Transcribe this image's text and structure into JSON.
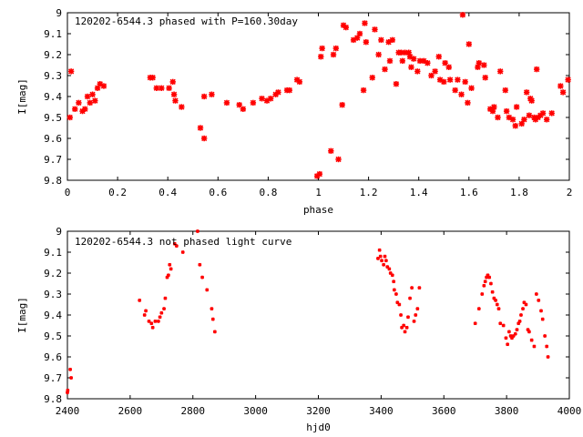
{
  "chart_data": [
    {
      "type": "scatter",
      "title": "120202-6544.3 phased with P=160.30day",
      "xlabel": "phase",
      "ylabel": "I[mag]",
      "xlim": [
        0,
        2
      ],
      "ylim": [
        9.8,
        9.0
      ],
      "y_inverted": true,
      "xticks": [
        0,
        0.2,
        0.4,
        0.6,
        0.8,
        1,
        1.2,
        1.4,
        1.6,
        1.8,
        2
      ],
      "xtick_labels": [
        "0",
        "0.2",
        "0.4",
        "0.6",
        "0.8",
        "1",
        "1.2",
        "1.4",
        "1.6",
        "1.8",
        "2"
      ],
      "yticks": [
        9.0,
        9.1,
        9.2,
        9.3,
        9.4,
        9.5,
        9.6,
        9.7,
        9.8
      ],
      "ytick_labels": [
        "9",
        "9.1",
        "9.2",
        "9.3",
        "9.4",
        "9.5",
        "9.6",
        "9.7",
        "9.8"
      ],
      "marker_color": "#ff0000",
      "marker": "cross-large",
      "series": [
        {
          "points": [
            [
              0.01,
              9.5
            ],
            [
              0.015,
              9.28
            ],
            [
              0.03,
              9.46
            ],
            [
              0.045,
              9.43
            ],
            [
              0.06,
              9.47
            ],
            [
              0.07,
              9.46
            ],
            [
              0.08,
              9.4
            ],
            [
              0.09,
              9.43
            ],
            [
              0.1,
              9.39
            ],
            [
              0.11,
              9.42
            ],
            [
              0.12,
              9.36
            ],
            [
              0.13,
              9.34
            ],
            [
              0.145,
              9.35
            ],
            [
              0.33,
              9.31
            ],
            [
              0.34,
              9.31
            ],
            [
              0.355,
              9.36
            ],
            [
              0.375,
              9.36
            ],
            [
              0.405,
              9.36
            ],
            [
              0.42,
              9.33
            ],
            [
              0.425,
              9.39
            ],
            [
              0.43,
              9.42
            ],
            [
              0.455,
              9.45
            ],
            [
              0.53,
              9.55
            ],
            [
              0.545,
              9.6
            ],
            [
              0.545,
              9.4
            ],
            [
              0.575,
              9.39
            ],
            [
              0.635,
              9.43
            ],
            [
              0.685,
              9.44
            ],
            [
              0.7,
              9.46
            ],
            [
              0.74,
              9.43
            ],
            [
              0.775,
              9.41
            ],
            [
              0.795,
              9.42
            ],
            [
              0.81,
              9.41
            ],
            [
              0.83,
              9.39
            ],
            [
              0.84,
              9.38
            ],
            [
              0.875,
              9.37
            ],
            [
              0.885,
              9.37
            ],
            [
              0.915,
              9.32
            ],
            [
              0.925,
              9.33
            ],
            [
              0.995,
              9.78
            ],
            [
              1.005,
              9.77
            ],
            [
              1.01,
              9.21
            ],
            [
              1.015,
              9.17
            ],
            [
              1.05,
              9.66
            ],
            [
              1.06,
              9.2
            ],
            [
              1.07,
              9.17
            ],
            [
              1.08,
              9.7
            ],
            [
              1.095,
              9.44
            ],
            [
              1.1,
              9.06
            ],
            [
              1.11,
              9.07
            ],
            [
              1.14,
              9.13
            ],
            [
              1.155,
              9.12
            ],
            [
              1.165,
              9.1
            ],
            [
              1.18,
              9.37
            ],
            [
              1.185,
              9.05
            ],
            [
              1.19,
              9.14
            ],
            [
              1.215,
              9.31
            ],
            [
              1.225,
              9.08
            ],
            [
              1.24,
              9.2
            ],
            [
              1.25,
              9.13
            ],
            [
              1.265,
              9.27
            ],
            [
              1.28,
              9.14
            ],
            [
              1.285,
              9.23
            ],
            [
              1.295,
              9.13
            ],
            [
              1.31,
              9.34
            ],
            [
              1.32,
              9.19
            ],
            [
              1.33,
              9.19
            ],
            [
              1.335,
              9.23
            ],
            [
              1.345,
              9.19
            ],
            [
              1.36,
              9.19
            ],
            [
              1.365,
              9.21
            ],
            [
              1.37,
              9.26
            ],
            [
              1.38,
              9.22
            ],
            [
              1.395,
              9.28
            ],
            [
              1.405,
              9.23
            ],
            [
              1.42,
              9.23
            ],
            [
              1.435,
              9.24
            ],
            [
              1.45,
              9.3
            ],
            [
              1.465,
              9.28
            ],
            [
              1.48,
              9.21
            ],
            [
              1.485,
              9.32
            ],
            [
              1.5,
              9.33
            ],
            [
              1.505,
              9.24
            ],
            [
              1.52,
              9.26
            ],
            [
              1.525,
              9.32
            ],
            [
              1.545,
              9.37
            ],
            [
              1.555,
              9.32
            ],
            [
              1.57,
              9.39
            ],
            [
              1.575,
              9.01
            ],
            [
              1.585,
              9.33
            ],
            [
              1.595,
              9.43
            ],
            [
              1.6,
              9.15
            ],
            [
              1.61,
              9.36
            ],
            [
              1.635,
              9.26
            ],
            [
              1.64,
              9.24
            ],
            [
              1.66,
              9.25
            ],
            [
              1.665,
              9.31
            ],
            [
              1.685,
              9.46
            ],
            [
              1.695,
              9.47
            ],
            [
              1.7,
              9.45
            ],
            [
              1.715,
              9.5
            ],
            [
              1.725,
              9.28
            ],
            [
              1.745,
              9.37
            ],
            [
              1.75,
              9.47
            ],
            [
              1.76,
              9.5
            ],
            [
              1.775,
              9.51
            ],
            [
              1.785,
              9.54
            ],
            [
              1.79,
              9.45
            ],
            [
              1.81,
              9.53
            ],
            [
              1.82,
              9.51
            ],
            [
              1.83,
              9.38
            ],
            [
              1.84,
              9.49
            ],
            [
              1.845,
              9.41
            ],
            [
              1.85,
              9.42
            ],
            [
              1.86,
              9.5
            ],
            [
              1.865,
              9.51
            ],
            [
              1.87,
              9.27
            ],
            [
              1.875,
              9.5
            ],
            [
              1.885,
              9.49
            ],
            [
              1.895,
              9.48
            ],
            [
              1.91,
              9.51
            ],
            [
              1.93,
              9.48
            ],
            [
              1.965,
              9.35
            ],
            [
              1.975,
              9.38
            ],
            [
              1.995,
              9.32
            ]
          ]
        }
      ]
    },
    {
      "type": "scatter",
      "title": "120202-6544.3 not phased light curve",
      "xlabel": "hjd0",
      "ylabel": "I[mag]",
      "xlim": [
        2400,
        4000
      ],
      "ylim": [
        9.8,
        9.0
      ],
      "y_inverted": true,
      "xticks": [
        2400,
        2600,
        2800,
        3000,
        3200,
        3400,
        3600,
        3800,
        4000
      ],
      "xtick_labels": [
        "2400",
        "2600",
        "2800",
        "3000",
        "3200",
        "3400",
        "3600",
        "3800",
        "4000"
      ],
      "yticks": [
        9.0,
        9.1,
        9.2,
        9.3,
        9.4,
        9.5,
        9.6,
        9.7,
        9.8
      ],
      "ytick_labels": [
        "9",
        "9.1",
        "9.2",
        "9.3",
        "9.4",
        "9.5",
        "9.6",
        "9.7",
        "9.8"
      ],
      "marker_color": "#ff0000",
      "marker": "cross-small",
      "series": [
        {
          "points": [
            [
              2400,
              9.77
            ],
            [
              2401,
              9.76
            ],
            [
              2409,
              9.66
            ],
            [
              2412,
              9.7
            ],
            [
              2630,
              9.33
            ],
            [
              2646,
              9.4
            ],
            [
              2650,
              9.38
            ],
            [
              2660,
              9.43
            ],
            [
              2668,
              9.44
            ],
            [
              2672,
              9.46
            ],
            [
              2680,
              9.43
            ],
            [
              2690,
              9.43
            ],
            [
              2695,
              9.41
            ],
            [
              2700,
              9.39
            ],
            [
              2708,
              9.37
            ],
            [
              2712,
              9.32
            ],
            [
              2718,
              9.22
            ],
            [
              2722,
              9.21
            ],
            [
              2726,
              9.16
            ],
            [
              2730,
              9.18
            ],
            [
              2742,
              9.06
            ],
            [
              2748,
              9.07
            ],
            [
              2768,
              9.1
            ],
            [
              2815,
              9.0
            ],
            [
              2822,
              9.16
            ],
            [
              2830,
              9.22
            ],
            [
              2845,
              9.28
            ],
            [
              2860,
              9.37
            ],
            [
              2864,
              9.42
            ],
            [
              2870,
              9.48
            ],
            [
              3390,
              9.13
            ],
            [
              3395,
              9.09
            ],
            [
              3398,
              9.12
            ],
            [
              3402,
              9.14
            ],
            [
              3408,
              9.16
            ],
            [
              3412,
              9.12
            ],
            [
              3416,
              9.14
            ],
            [
              3420,
              9.17
            ],
            [
              3426,
              9.18
            ],
            [
              3430,
              9.2
            ],
            [
              3436,
              9.21
            ],
            [
              3440,
              9.24
            ],
            [
              3442,
              9.28
            ],
            [
              3448,
              9.3
            ],
            [
              3452,
              9.34
            ],
            [
              3458,
              9.35
            ],
            [
              3463,
              9.4
            ],
            [
              3466,
              9.46
            ],
            [
              3472,
              9.45
            ],
            [
              3476,
              9.48
            ],
            [
              3482,
              9.46
            ],
            [
              3486,
              9.41
            ],
            [
              3492,
              9.32
            ],
            [
              3498,
              9.27
            ],
            [
              3505,
              9.43
            ],
            [
              3510,
              9.4
            ],
            [
              3516,
              9.37
            ],
            [
              3522,
              9.27
            ],
            [
              3700,
              9.44
            ],
            [
              3712,
              9.37
            ],
            [
              3722,
              9.3
            ],
            [
              3728,
              9.26
            ],
            [
              3732,
              9.24
            ],
            [
              3736,
              9.22
            ],
            [
              3740,
              9.21
            ],
            [
              3745,
              9.22
            ],
            [
              3750,
              9.25
            ],
            [
              3755,
              9.29
            ],
            [
              3760,
              9.32
            ],
            [
              3765,
              9.33
            ],
            [
              3770,
              9.35
            ],
            [
              3775,
              9.37
            ],
            [
              3780,
              9.44
            ],
            [
              3790,
              9.45
            ],
            [
              3798,
              9.51
            ],
            [
              3803,
              9.54
            ],
            [
              3808,
              9.48
            ],
            [
              3813,
              9.5
            ],
            [
              3817,
              9.51
            ],
            [
              3822,
              9.5
            ],
            [
              3828,
              9.49
            ],
            [
              3833,
              9.47
            ],
            [
              3838,
              9.44
            ],
            [
              3842,
              9.43
            ],
            [
              3846,
              9.4
            ],
            [
              3852,
              9.37
            ],
            [
              3856,
              9.34
            ],
            [
              3862,
              9.35
            ],
            [
              3868,
              9.47
            ],
            [
              3872,
              9.48
            ],
            [
              3880,
              9.52
            ],
            [
              3888,
              9.55
            ],
            [
              3895,
              9.3
            ],
            [
              3902,
              9.33
            ],
            [
              3910,
              9.38
            ],
            [
              3915,
              9.42
            ],
            [
              3922,
              9.5
            ],
            [
              3928,
              9.55
            ],
            [
              3932,
              9.6
            ]
          ]
        }
      ]
    }
  ]
}
